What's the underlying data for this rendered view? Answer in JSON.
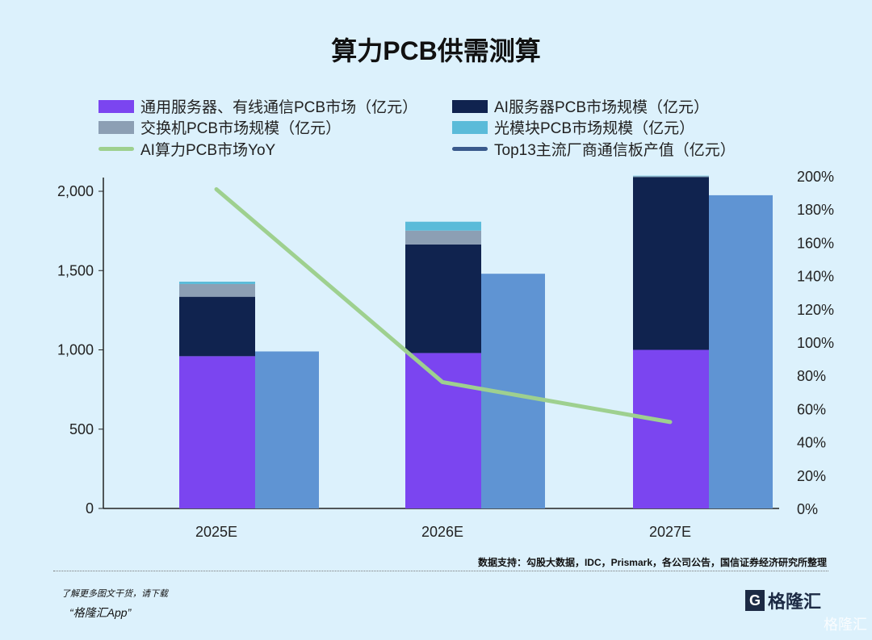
{
  "title": "算力PCB供需测算",
  "legend": [
    {
      "label": "通用服务器、有线通信PCB市场（亿元）",
      "color": "#7b45f0",
      "kind": "bar"
    },
    {
      "label": "AI服务器PCB市场规模（亿元）",
      "color": "#10234f",
      "kind": "bar"
    },
    {
      "label": "交换机PCB市场规模（亿元）",
      "color": "#8c9fb4",
      "kind": "bar"
    },
    {
      "label": "光模块PCB市场规模（亿元）",
      "color": "#5bbbd9",
      "kind": "bar"
    },
    {
      "label": "AI算力PCB市场YoY",
      "color": "#9ed08f",
      "kind": "line"
    },
    {
      "label": "Top13主流厂商通信板产值（亿元）",
      "color": "#3a5a8c",
      "kind": "line"
    }
  ],
  "chart_data": {
    "type": "bar",
    "title": "算力PCB供需测算",
    "categories": [
      "2025E",
      "2026E",
      "2027E"
    ],
    "stacked_series": [
      {
        "name": "通用服务器、有线通信PCB市场（亿元）",
        "values": [
          960,
          980,
          1000
        ],
        "color": "#7b45f0"
      },
      {
        "name": "AI服务器PCB市场规模（亿元）",
        "values": [
          375,
          685,
          1090
        ],
        "color": "#10234f"
      },
      {
        "name": "交换机PCB市场规模（亿元）",
        "values": [
          80,
          87,
          5
        ],
        "color": "#8c9fb4"
      },
      {
        "name": "光模块PCB市场规模（亿元）",
        "values": [
          15,
          56,
          3
        ],
        "color": "#5bbbd9"
      }
    ],
    "bar_series": {
      "name": "Top13主流厂商通信板产值（亿元）",
      "values": [
        990,
        1480,
        1975
      ],
      "color": "#5f94d3"
    },
    "line_series": {
      "name": "AI算力PCB市场YoY",
      "values": [
        192,
        76,
        52
      ],
      "unit": "%",
      "axis": "right",
      "color": "#9ed08f"
    },
    "left_axis": {
      "ylim": [
        0,
        2100
      ],
      "ticks": [
        "0",
        "500",
        "1,000",
        "1,500",
        "2,000"
      ],
      "tick_values": [
        0,
        500,
        1000,
        1500,
        2000
      ]
    },
    "right_axis": {
      "ylim": [
        0,
        200
      ],
      "ticks": [
        "0%",
        "20%",
        "40%",
        "60%",
        "80%",
        "100%",
        "120%",
        "140%",
        "160%",
        "180%",
        "200%"
      ]
    },
    "legend_placement": "top",
    "grid": false
  },
  "source": "数据支持：勾股大数据，IDC，Prismark，各公司公告，国信证券经济研究所整理",
  "promo_line1": "了解更多图文干货，请下载",
  "promo_line2": "“格隆汇App”",
  "logo_text": "格隆汇",
  "watermark": "格隆汇"
}
